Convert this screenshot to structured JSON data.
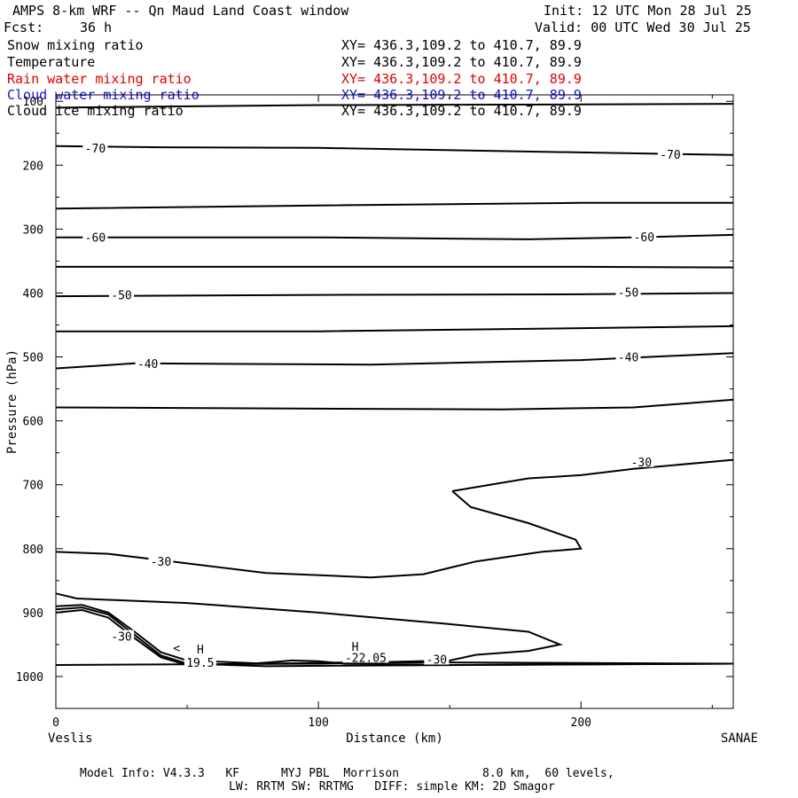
{
  "header": {
    "title": "AMPS 8-km WRF -- Qn Maud Land Coast window",
    "init": "Init: 12 UTC Mon 28 Jul 25",
    "fcst_label": "Fcst:",
    "fcst_value": "36 h",
    "valid": "Valid: 00 UTC Wed 30 Jul 25"
  },
  "fields": [
    {
      "name": "Snow mixing ratio",
      "xy": "XY= 436.3,109.2 to 410.7, 89.9",
      "color": "#000000"
    },
    {
      "name": "Temperature",
      "xy": "XY= 436.3,109.2 to 410.7, 89.9",
      "color": "#000000"
    },
    {
      "name": "Rain water mixing ratio",
      "xy": "XY= 436.3,109.2 to 410.7, 89.9",
      "color": "#e00000"
    },
    {
      "name": "Cloud water mixing ratio",
      "xy": "XY= 436.3,109.2 to 410.7, 89.9",
      "color": "#1010d0"
    },
    {
      "name": "Cloud ice mixing ratio",
      "xy": "XY= 436.3,109.2 to 410.7, 89.9",
      "color": "#000000"
    }
  ],
  "footer": {
    "line1": "Model Info: V4.3.3   KF      MYJ PBL  Morrison            8.0 km,  60 levels,",
    "line2": "LW: RRTM SW: RRTMG   DIFF: simple KM: 2D Smagor"
  },
  "chart_data": {
    "type": "line",
    "xlabel": "Distance (km)",
    "ylabel": "Pressure (hPa)",
    "xlim": [
      0,
      258
    ],
    "ylim": [
      1050,
      90
    ],
    "x_ticks": [
      0,
      100,
      200
    ],
    "y_ticks": [
      100,
      200,
      300,
      400,
      500,
      600,
      700,
      800,
      900,
      1000
    ],
    "x_endpoints": {
      "left": "Veslis",
      "right": "SANAE"
    },
    "contour_labels": [
      {
        "text": "-70",
        "x": 15,
        "p": 173
      },
      {
        "text": "-70",
        "x": 234,
        "p": 183
      },
      {
        "text": "-60",
        "x": 15,
        "p": 313
      },
      {
        "text": "-60",
        "x": 224,
        "p": 312
      },
      {
        "text": "-50",
        "x": 25,
        "p": 403
      },
      {
        "text": "-50",
        "x": 218,
        "p": 399
      },
      {
        "text": "-40",
        "x": 35,
        "p": 510
      },
      {
        "text": "-40",
        "x": 218,
        "p": 500
      },
      {
        "text": "-30",
        "x": 223,
        "p": 664
      },
      {
        "text": "-30",
        "x": 40,
        "p": 820
      },
      {
        "text": "-30",
        "x": 25,
        "p": 937
      },
      {
        "text": "-30",
        "x": 145,
        "p": 973
      },
      {
        "text": "H",
        "x": 55,
        "p": 957
      },
      {
        "text": "19.5",
        "x": 55,
        "p": 978
      },
      {
        "text": "H",
        "x": 114,
        "p": 953
      },
      {
        "text": "-22.05",
        "x": 118,
        "p": 970
      },
      {
        "text": "<",
        "x": 46,
        "p": 955
      }
    ],
    "series": [
      {
        "values": [
          [
            0,
            110
          ],
          [
            100,
            106
          ],
          [
            200,
            105
          ],
          [
            258,
            104
          ]
        ]
      },
      {
        "values": [
          [
            0,
            170
          ],
          [
            40,
            172
          ],
          [
            100,
            173
          ],
          [
            200,
            180
          ],
          [
            258,
            184
          ]
        ]
      },
      {
        "values": [
          [
            0,
            268
          ],
          [
            100,
            263
          ],
          [
            200,
            259
          ],
          [
            258,
            259
          ]
        ]
      },
      {
        "values": [
          [
            0,
            313
          ],
          [
            100,
            313
          ],
          [
            180,
            316
          ],
          [
            220,
            313
          ],
          [
            258,
            309
          ]
        ]
      },
      {
        "values": [
          [
            0,
            359
          ],
          [
            100,
            359
          ],
          [
            200,
            359
          ],
          [
            258,
            360
          ]
        ]
      },
      {
        "values": [
          [
            0,
            405
          ],
          [
            100,
            403
          ],
          [
            200,
            402
          ],
          [
            258,
            400
          ]
        ]
      },
      {
        "values": [
          [
            0,
            460
          ],
          [
            100,
            460
          ],
          [
            200,
            455
          ],
          [
            258,
            452
          ]
        ]
      },
      {
        "values": [
          [
            0,
            518
          ],
          [
            30,
            510
          ],
          [
            120,
            512
          ],
          [
            200,
            505
          ],
          [
            258,
            494
          ]
        ]
      },
      {
        "values": [
          [
            0,
            579
          ],
          [
            100,
            581
          ],
          [
            170,
            582
          ],
          [
            220,
            579
          ],
          [
            258,
            567
          ]
        ]
      },
      {
        "values": [
          [
            151,
            710
          ],
          [
            180,
            690
          ],
          [
            200,
            685
          ],
          [
            220,
            675
          ],
          [
            258,
            661
          ]
        ]
      },
      {
        "values": [
          [
            151,
            710
          ],
          [
            158,
            735
          ],
          [
            180,
            760
          ],
          [
            198,
            786
          ],
          [
            200,
            800
          ],
          [
            185,
            805
          ],
          [
            160,
            820
          ],
          [
            140,
            840
          ],
          [
            120,
            845
          ],
          [
            80,
            838
          ],
          [
            40,
            818
          ],
          [
            20,
            808
          ],
          [
            0,
            805
          ]
        ]
      },
      {
        "values": [
          [
            0,
            870
          ],
          [
            8,
            878
          ],
          [
            50,
            885
          ],
          [
            100,
            900
          ],
          [
            150,
            918
          ],
          [
            180,
            930
          ],
          [
            192,
            950
          ],
          [
            180,
            960
          ],
          [
            160,
            966
          ],
          [
            150,
            975
          ],
          [
            100,
            980
          ],
          [
            0,
            982
          ]
        ]
      },
      {
        "values": [
          [
            0,
            890
          ],
          [
            10,
            888
          ],
          [
            20,
            900
          ],
          [
            30,
            930
          ],
          [
            40,
            962
          ],
          [
            50,
            975
          ],
          [
            80,
            980
          ],
          [
            110,
            978
          ],
          [
            150,
            978
          ],
          [
            258,
            980
          ]
        ]
      },
      {
        "values": [
          [
            0,
            895
          ],
          [
            10,
            892
          ],
          [
            20,
            903
          ],
          [
            30,
            935
          ],
          [
            40,
            967
          ],
          [
            50,
            980
          ],
          [
            80,
            984
          ],
          [
            110,
            983
          ],
          [
            258,
            980
          ]
        ]
      },
      {
        "values": [
          [
            0,
            900
          ],
          [
            10,
            896
          ],
          [
            20,
            908
          ],
          [
            30,
            940
          ],
          [
            40,
            970
          ],
          [
            50,
            982
          ]
        ]
      },
      {
        "values": [
          [
            75,
            980
          ],
          [
            90,
            975
          ],
          [
            100,
            976
          ],
          [
            110,
            980
          ],
          [
            150,
            982
          ],
          [
            258,
            980
          ]
        ]
      }
    ]
  }
}
